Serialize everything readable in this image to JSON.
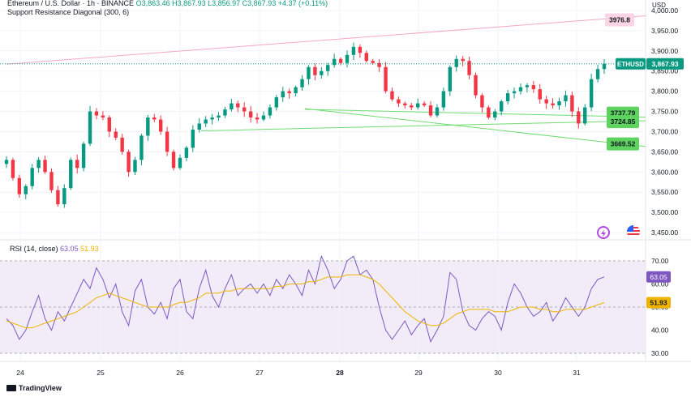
{
  "header": {
    "symbol": "Ethereum / U.S. Dollar · 1h · BINANCE",
    "ohlc": "O3,863.46  H3,867.93  L3,856.97  C3,867.93  +4.37 (+0.11%)",
    "indicator": "Support Resistance Diagonal (300, 6)"
  },
  "rsi_header": {
    "label": "RSI (14, close)",
    "value1": "63.05",
    "value2": "51.93"
  },
  "currency_label": "USD",
  "brand": "TradingView",
  "colors": {
    "up": "#089981",
    "down": "#f23645",
    "rsi": "#7e57c2",
    "rsi_ma": "#f0b400",
    "resistance": "#f7a6c0",
    "support": "#6fdc6f",
    "price_label": "#089981"
  },
  "icons": [
    "lightning-icon",
    "flag-icon"
  ],
  "chart_data": [
    {
      "type": "candlestick",
      "title": "Ethereum / U.S. Dollar · 1h · BINANCE",
      "x_labels": [
        "24",
        "25",
        "26",
        "27",
        "28",
        "29",
        "30",
        "31"
      ],
      "y_ticks": [
        "4,000.00",
        "3,950.00",
        "3,900.00",
        "3,850.00",
        "3,800.00",
        "3,750.00",
        "3,700.00",
        "3,650.00",
        "3,600.00",
        "3,550.00",
        "3,500.00",
        "3,450.00"
      ],
      "ylim": [
        3440,
        4010
      ],
      "close_path": [
        3630,
        3585,
        3545,
        3565,
        3610,
        3630,
        3600,
        3555,
        3520,
        3560,
        3630,
        3610,
        3670,
        3750,
        3740,
        3735,
        3700,
        3685,
        3650,
        3600,
        3630,
        3690,
        3735,
        3730,
        3700,
        3650,
        3610,
        3635,
        3660,
        3705,
        3720,
        3730,
        3735,
        3740,
        3755,
        3770,
        3760,
        3750,
        3735,
        3730,
        3740,
        3760,
        3785,
        3800,
        3795,
        3810,
        3830,
        3860,
        3840,
        3850,
        3865,
        3880,
        3870,
        3890,
        3910,
        3895,
        3875,
        3870,
        3860,
        3800,
        3780,
        3770,
        3765,
        3760,
        3770,
        3765,
        3740,
        3760,
        3800,
        3860,
        3880,
        3875,
        3840,
        3790,
        3760,
        3735,
        3750,
        3775,
        3795,
        3800,
        3810,
        3815,
        3805,
        3780,
        3770,
        3765,
        3775,
        3790,
        3750,
        3720,
        3760,
        3830,
        3855,
        3868
      ],
      "current_price": "3,867.93",
      "price_label": "ETHUSD",
      "levels": [
        {
          "kind": "resistance",
          "value": "3976.8"
        },
        {
          "kind": "support",
          "value": "3724.85"
        },
        {
          "kind": "support",
          "value": "3737.79"
        },
        {
          "kind": "support",
          "value": "3669.52"
        }
      ]
    },
    {
      "type": "line",
      "title": "RSI (14, close)",
      "y_ticks": [
        "70.00",
        "60.00",
        "50.00",
        "40.00",
        "30.00"
      ],
      "ylim": [
        30,
        70
      ],
      "series": [
        {
          "name": "RSI",
          "color": "#7e57c2",
          "values": [
            45,
            42,
            36,
            40,
            48,
            55,
            45,
            40,
            48,
            44,
            50,
            56,
            62,
            58,
            67,
            62,
            54,
            60,
            48,
            42,
            57,
            62,
            50,
            47,
            52,
            45,
            58,
            62,
            48,
            45,
            58,
            66,
            55,
            50,
            58,
            64,
            55,
            58,
            60,
            56,
            60,
            55,
            62,
            58,
            64,
            60,
            55,
            66,
            60,
            72,
            66,
            58,
            62,
            70,
            72,
            64,
            66,
            62,
            50,
            40,
            36,
            40,
            44,
            38,
            42,
            45,
            35,
            40,
            46,
            65,
            62,
            48,
            42,
            40,
            45,
            48,
            46,
            40,
            52,
            60,
            56,
            50,
            46,
            48,
            52,
            44,
            48,
            54,
            50,
            46,
            50,
            58,
            62,
            63.05
          ]
        },
        {
          "name": "RSI MA",
          "color": "#f0b400",
          "values": [
            44,
            43,
            42,
            41,
            41,
            42,
            43,
            44,
            45,
            46,
            47,
            48,
            50,
            52,
            54,
            55,
            56,
            55,
            54,
            53,
            52,
            51,
            50,
            50,
            50,
            50,
            51,
            52,
            52,
            53,
            54,
            56,
            56,
            56,
            57,
            57,
            58,
            58,
            58,
            58,
            58,
            58,
            59,
            59,
            60,
            60,
            60,
            61,
            61,
            62,
            63,
            63,
            63,
            64,
            64,
            64,
            63,
            62,
            60,
            57,
            54,
            51,
            48,
            46,
            44,
            43,
            42,
            42,
            43,
            45,
            47,
            48,
            49,
            49,
            49,
            49,
            48,
            48,
            48,
            49,
            50,
            50,
            50,
            49,
            49,
            48,
            48,
            49,
            49,
            49,
            49,
            50,
            51,
            51.93
          ]
        }
      ],
      "levels": [
        70,
        50,
        30
      ]
    }
  ]
}
